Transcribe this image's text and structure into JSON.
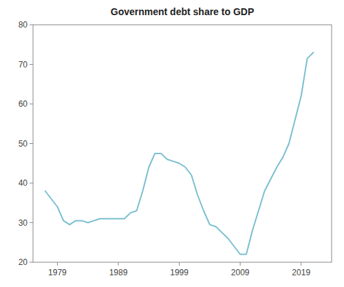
{
  "chart_data": {
    "type": "line",
    "title": "Government debt share to GDP",
    "color": "#7abfcf",
    "grid": false,
    "x": [
      1977,
      1978,
      1979,
      1980,
      1981,
      1982,
      1983,
      1984,
      1985,
      1986,
      1987,
      1988,
      1989,
      1990,
      1991,
      1992,
      1993,
      1994,
      1995,
      1996,
      1997,
      1998,
      1999,
      2000,
      2001,
      2002,
      2003,
      2004,
      2005,
      2006,
      2007,
      2008,
      2009,
      2010,
      2011,
      2012,
      2013,
      2014,
      2015,
      2016,
      2017,
      2018,
      2019,
      2020,
      2021
    ],
    "values": [
      38.0,
      36.0,
      34.0,
      30.5,
      29.5,
      30.5,
      30.5,
      30.0,
      30.5,
      31.0,
      31.0,
      31.0,
      31.0,
      31.0,
      32.5,
      33.0,
      38.0,
      44.0,
      47.5,
      47.5,
      46.0,
      45.5,
      45.0,
      44.0,
      42.0,
      37.0,
      33.0,
      29.5,
      29.0,
      27.5,
      26.0,
      24.0,
      22.0,
      22.0,
      28.0,
      33.0,
      38.0,
      41.0,
      44.0,
      46.5,
      50.0,
      56.0,
      62.0,
      71.5,
      73.0
    ],
    "xlim": [
      1975,
      2024
    ],
    "ylim": [
      20,
      80
    ],
    "xticks": [
      1979,
      1989,
      1999,
      2009,
      2019
    ],
    "yticks": [
      20,
      30,
      40,
      50,
      60,
      70,
      80
    ]
  }
}
